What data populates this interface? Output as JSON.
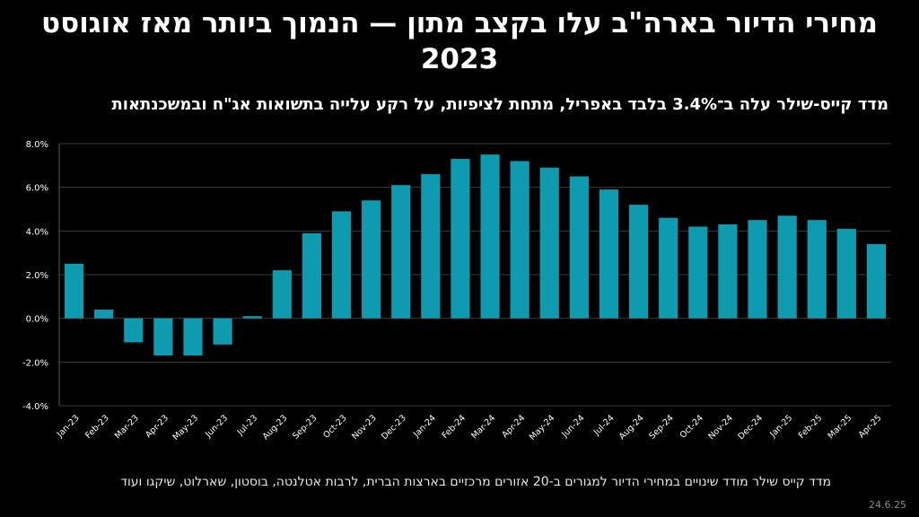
{
  "header": {
    "title": "מחירי הדיור בארה\"ב עלו בקצב מתון — הנמוך ביותר מאז אוגוסט 2023",
    "subtitle": "מדד קייס-שילר עלה ב־3.4% בלבד באפריל, מתחת לציפיות, על רקע עלייה בתשואות אג\"ח ובמשכנתאות"
  },
  "footer": {
    "note": "מדד קייס שילר מודד שינויים במחירי הדיור למגורים ב-20 אזורים מרכזיים בארצות הברית, לרבות אטלנטה, בוסטון, שארלוט, שיקגו ועוד",
    "date": "24.6.25"
  },
  "chart_data": {
    "type": "bar",
    "categories": [
      "Jan-23",
      "Feb-23",
      "Mar-23",
      "Apr-23",
      "May-23",
      "Jun-23",
      "Jul-23",
      "Aug-23",
      "Sep-23",
      "Oct-23",
      "Nov-23",
      "Dec-23",
      "Jan-24",
      "Feb-24",
      "Mar-24",
      "Apr-24",
      "May-24",
      "Jun-24",
      "Jul-24",
      "Aug-24",
      "Sep-24",
      "Oct-24",
      "Nov-24",
      "Dec-24",
      "Jan-25",
      "Feb-25",
      "Mar-25",
      "Apr-25"
    ],
    "values": [
      2.5,
      0.4,
      -1.1,
      -1.7,
      -1.7,
      -1.2,
      0.1,
      2.2,
      3.9,
      4.9,
      5.4,
      6.1,
      6.6,
      7.3,
      7.5,
      7.2,
      6.9,
      6.5,
      5.9,
      5.2,
      4.6,
      4.2,
      4.3,
      4.5,
      4.7,
      4.5,
      4.1,
      3.4
    ],
    "ylim": [
      -4,
      8
    ],
    "yticks": [
      -4,
      -2,
      0,
      2,
      4,
      6,
      8
    ],
    "ytick_labels": [
      "-4.0%",
      "-2.0%",
      "0.0%",
      "2.0%",
      "4.0%",
      "6.0%",
      "8.0%"
    ],
    "grid": true,
    "bar_color": "#0E9AAF",
    "grid_color": "#3a3a3a"
  }
}
